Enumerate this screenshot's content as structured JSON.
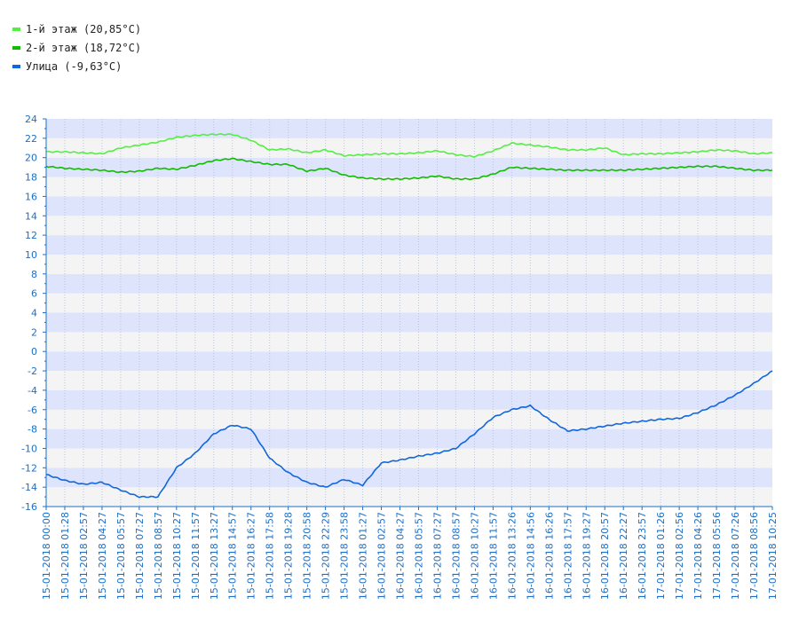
{
  "legend": [
    {
      "label": "1-й этаж (20,85°C)",
      "color": "#55ee44"
    },
    {
      "label": "2-й этаж (18,72°C)",
      "color": "#11bb00"
    },
    {
      "label": "Улица (-9,63°C)",
      "color": "#1166dd"
    }
  ],
  "chart_data": {
    "type": "line",
    "title": "",
    "xlabel": "",
    "ylabel": "",
    "ylim": [
      -16,
      24
    ],
    "yticks": [
      -16,
      -14,
      -12,
      -10,
      -8,
      -6,
      -4,
      -2,
      0,
      2,
      4,
      6,
      8,
      10,
      12,
      14,
      16,
      18,
      20,
      22,
      24
    ],
    "grid": true,
    "band_colors": [
      "#dde4fb",
      "#f4f4f4"
    ],
    "axis_color": "#1b6fc8",
    "legend_position": "top-left",
    "x_tick_labels": [
      "15-01-2018 00:00",
      "15-01-2018 01:28",
      "15-01-2018 02:57",
      "15-01-2018 04:27",
      "15-01-2018 05:57",
      "15-01-2018 07:27",
      "15-01-2018 08:57",
      "15-01-2018 10:27",
      "15-01-2018 11:57",
      "15-01-2018 13:27",
      "15-01-2018 14:57",
      "15-01-2018 16:27",
      "15-01-2018 17:58",
      "15-01-2018 19:28",
      "15-01-2018 20:58",
      "15-01-2018 22:29",
      "15-01-2018 23:58",
      "16-01-2018 01:27",
      "16-01-2018 02:57",
      "16-01-2018 04:27",
      "16-01-2018 05:57",
      "16-01-2018 07:27",
      "16-01-2018 08:57",
      "16-01-2018 10:27",
      "16-01-2018 11:57",
      "16-01-2018 13:26",
      "16-01-2018 14:56",
      "16-01-2018 16:26",
      "16-01-2018 17:57",
      "16-01-2018 19:27",
      "16-01-2018 20:57",
      "16-01-2018 22:27",
      "16-01-2018 23:57",
      "17-01-2018 01:26",
      "17-01-2018 02:56",
      "17-01-2018 04:26",
      "17-01-2018 05:56",
      "17-01-2018 07:26",
      "17-01-2018 08:56",
      "17-01-2018 10:25"
    ],
    "series": [
      {
        "name": "1-й этаж (20,85°C)",
        "color": "#55ee44",
        "values": [
          20.6,
          20.6,
          20.5,
          20.4,
          21.0,
          21.3,
          21.6,
          22.1,
          22.3,
          22.4,
          22.4,
          21.8,
          20.8,
          20.9,
          20.5,
          20.8,
          20.2,
          20.3,
          20.4,
          20.4,
          20.5,
          20.7,
          20.3,
          20.1,
          20.7,
          21.5,
          21.3,
          21.1,
          20.8,
          20.8,
          21.0,
          20.3,
          20.4,
          20.4,
          20.5,
          20.6,
          20.8,
          20.7,
          20.4,
          20.5
        ]
      },
      {
        "name": "2-й этаж (18,72°C)",
        "color": "#11bb00",
        "values": [
          19.1,
          18.9,
          18.8,
          18.7,
          18.5,
          18.6,
          18.9,
          18.8,
          19.2,
          19.7,
          19.9,
          19.6,
          19.3,
          19.3,
          18.6,
          18.9,
          18.2,
          17.9,
          17.8,
          17.8,
          17.9,
          18.1,
          17.8,
          17.8,
          18.3,
          19.0,
          18.9,
          18.8,
          18.7,
          18.7,
          18.7,
          18.7,
          18.8,
          18.9,
          19.0,
          19.1,
          19.1,
          18.9,
          18.7,
          18.7
        ]
      },
      {
        "name": "Улица (-9,63°C)",
        "color": "#1166dd",
        "values": [
          -12.7,
          -13.3,
          -13.7,
          -13.5,
          -14.3,
          -15.0,
          -15.0,
          -12.0,
          -10.5,
          -8.5,
          -7.6,
          -8.0,
          -11.0,
          -12.5,
          -13.5,
          -14.0,
          -13.2,
          -13.8,
          -11.5,
          -11.2,
          -10.8,
          -10.5,
          -10.0,
          -8.5,
          -6.8,
          -6.0,
          -5.6,
          -7.0,
          -8.2,
          -8.0,
          -7.7,
          -7.4,
          -7.2,
          -7.0,
          -6.9,
          -6.3,
          -5.5,
          -4.5,
          -3.3,
          -2.0
        ]
      }
    ]
  }
}
